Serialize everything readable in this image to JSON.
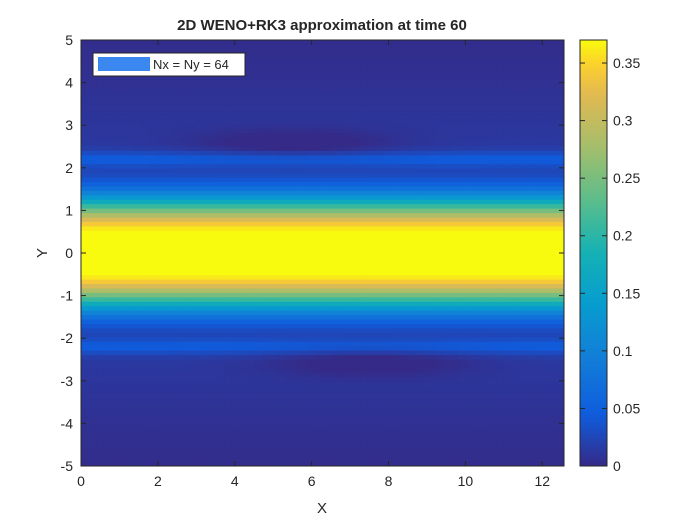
{
  "chart_data": {
    "type": "heatmap",
    "title": "2D WENO+RK3 approximation at time 60",
    "xlabel": "X",
    "ylabel": "Y",
    "xlim": [
      0,
      12.566
    ],
    "ylim": [
      -5,
      5
    ],
    "xticks": [
      0,
      2,
      4,
      6,
      8,
      10,
      12
    ],
    "yticks": [
      -5,
      -4,
      -3,
      -2,
      -1,
      0,
      1,
      2,
      3,
      4,
      5
    ],
    "colorbar": {
      "colormap": "parula",
      "clim": [
        0,
        0.37
      ],
      "ticks": [
        0,
        0.05,
        0.1,
        0.15,
        0.2,
        0.25,
        0.3,
        0.35
      ],
      "tick_labels": [
        "0",
        "0.05",
        "0.1",
        "0.15",
        "0.2",
        "0.25",
        "0.3",
        "0.35"
      ]
    },
    "legend": {
      "label": "Nx = Ny = 64",
      "placement": "top-left",
      "swatch_color": "#3a87f0"
    },
    "field": {
      "description_values": "u(y) profile, max ~0.37 at y=0, ~0.16 at |y|=1.2, ~0.02 for |y|>2",
      "central_band_peak": 0.37,
      "band_half_width": 1.05,
      "vortex_lows": [
        {
          "x": 5.5,
          "y": 2.55,
          "value": 0.005
        },
        {
          "x": 7.5,
          "y": -2.55,
          "value": 0.005
        }
      ],
      "filament_ridges": [
        {
          "y": 2.2,
          "value": 0.05
        },
        {
          "y": -2.2,
          "value": 0.05
        }
      ]
    },
    "grid": false
  },
  "colors": {
    "background": "#ffffff",
    "axes_frame": "#262626"
  }
}
